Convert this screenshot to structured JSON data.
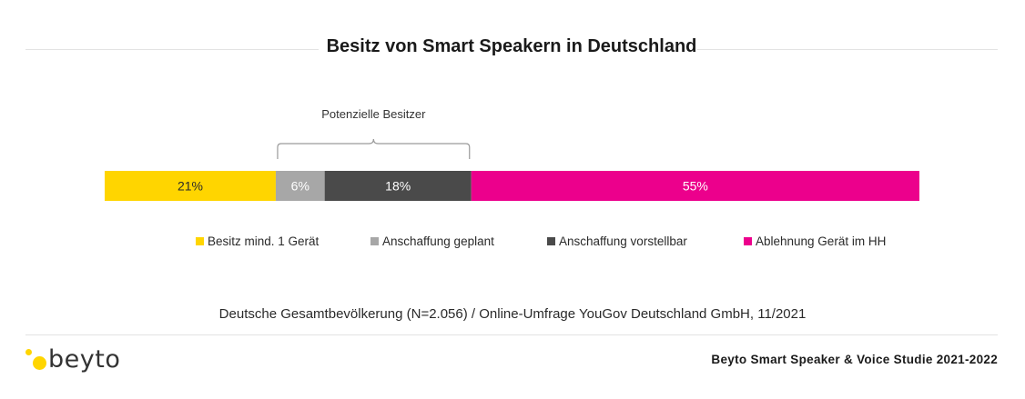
{
  "chart_data": {
    "type": "bar",
    "title": "Besitz von Smart Speakern in Deutschland",
    "orientation": "horizontal-stacked-100",
    "series": [
      {
        "name": "Besitz mind. 1 Gerät",
        "value": 21,
        "label": "21%",
        "color": "#FFD500"
      },
      {
        "name": "Anschaffung geplant",
        "value": 6,
        "label": "6%",
        "color": "#A7A7A7"
      },
      {
        "name": "Anschaffung vorstellbar",
        "value": 18,
        "label": "18%",
        "color": "#4A4A4A"
      },
      {
        "name": "Ablehnung Gerät im HH",
        "value": 55,
        "label": "55%",
        "color": "#EC008C"
      }
    ],
    "annotation": {
      "text": "Potenzielle Besitzer",
      "spans_series": [
        1,
        2
      ]
    },
    "xlim": [
      0,
      100
    ],
    "grid": false,
    "legend": "bottom"
  },
  "source_note": "Deutsche Gesamtbevölkerung (N=2.056) / Online-Umfrage YouGov Deutschland GmbH, 11/2021",
  "logo": {
    "text": "beyto",
    "color": "#FFD500"
  },
  "footer": {
    "study": "Beyto Smart Speaker & Voice Studie 2021-2022"
  }
}
